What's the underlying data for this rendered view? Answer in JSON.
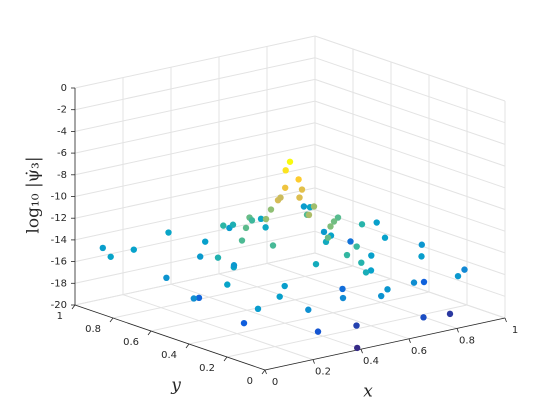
{
  "chart_data": {
    "type": "scatter3",
    "xlabel": "x",
    "ylabel": "y",
    "zlabel": "log₁₀ |ψ̇₃|",
    "xlim": [
      0,
      1
    ],
    "ylim": [
      0,
      1
    ],
    "zlim": [
      -20,
      0
    ],
    "xticks": [
      0,
      0.2,
      0.4,
      0.6,
      0.8,
      1
    ],
    "yticks": [
      0,
      0.2,
      0.4,
      0.6,
      0.8,
      1
    ],
    "zticks": [
      -20,
      -18,
      -16,
      -14,
      -12,
      -10,
      -8,
      -6,
      -4,
      -2,
      0
    ],
    "grid": true,
    "colormap": [
      "#352a87",
      "#0f5cdd",
      "#1481d6",
      "#06a4ca",
      "#2eb7a4",
      "#87bf77",
      "#d1bb59",
      "#fec832",
      "#f9fb0e"
    ],
    "x": [
      0.3,
      0.5,
      0.15,
      0.7,
      0.2,
      0.85,
      0.4,
      0.6,
      0.9,
      0.95,
      0.05,
      0.12,
      0.08,
      0.15,
      0.22,
      0.28,
      0.25,
      0.3,
      0.35,
      0.42,
      0.45,
      0.4,
      0.55,
      0.6,
      0.62,
      0.58,
      0.7,
      0.72,
      0.75,
      0.68,
      0.82,
      0.85,
      0.88,
      0.8,
      0.9,
      0.95,
      0.97,
      0.98,
      0.93,
      0.02,
      0.03,
      0.18,
      0.33,
      0.5,
      0.1,
      0.65,
      0.5,
      0.52,
      0.8,
      0.42,
      0.58,
      0.2,
      0.5,
      0.3,
      0.7,
      0.35,
      0.38,
      0.65,
      0.45,
      0.5,
      0.5,
      0.4,
      0.6,
      0.62,
      0.55,
      0.45,
      0.5,
      0.55,
      0.5,
      0.48,
      0.52,
      0.49,
      0.5,
      0.5,
      0.5,
      0.5
    ],
    "y": [
      0.1,
      0.15,
      0.3,
      0.05,
      0.6,
      0.1,
      0.02,
      0.35,
      0.3,
      0.75,
      0.1,
      0.35,
      0.62,
      0.88,
      0.05,
      0.25,
      0.48,
      0.72,
      0.95,
      0.12,
      0.3,
      0.82,
      0.05,
      0.2,
      0.78,
      0.92,
      0.1,
      0.35,
      0.6,
      0.88,
      0.02,
      0.25,
      0.48,
      0.7,
      0.9,
      0.15,
      0.4,
      0.65,
      0.97,
      0.4,
      0.85,
      0.15,
      0.58,
      0.02,
      0.98,
      0.5,
      0.1,
      0.15,
      0.5,
      0.75,
      0.25,
      0.5,
      0.8,
      0.5,
      0.5,
      0.4,
      0.58,
      0.6,
      0.65,
      0.2,
      0.7,
      0.5,
      0.5,
      0.42,
      0.35,
      0.5,
      0.3,
      0.5,
      0.4,
      0.5,
      0.48,
      0.51,
      0.45,
      0.55,
      0.6,
      0.5
    ],
    "z": [
      -18.5,
      -19.2,
      -18.2,
      -18.8,
      -17.9,
      -19.5,
      -20,
      -17.5,
      -18,
      -17.2,
      -15.2,
      -14.8,
      -15.6,
      -14.9,
      -15.8,
      -15.1,
      -14.6,
      -15.3,
      -14.7,
      -16.1,
      -14.2,
      -15,
      -15.5,
      -14.9,
      -14.5,
      -15.2,
      -15.9,
      -15,
      -14.8,
      -14.6,
      -15.4,
      -15.1,
      -14.9,
      -15.3,
      -14.7,
      -16.2,
      -15.5,
      -15,
      -15.2,
      -15.9,
      -14.8,
      -15,
      -15.4,
      -15.7,
      -15.1,
      -14.3,
      -14,
      -13.5,
      -13.4,
      -13.2,
      -12.9,
      -13.6,
      -13.8,
      -12.5,
      -12.3,
      -12.6,
      -12.2,
      -12.4,
      -12,
      -13,
      -12.8,
      -11,
      -10.8,
      -11.8,
      -11.5,
      -9.5,
      -12,
      -9,
      -10.5,
      -8.5,
      -7.8,
      -7,
      -9.2,
      -9.8,
      -11.2,
      -6.2
    ]
  }
}
